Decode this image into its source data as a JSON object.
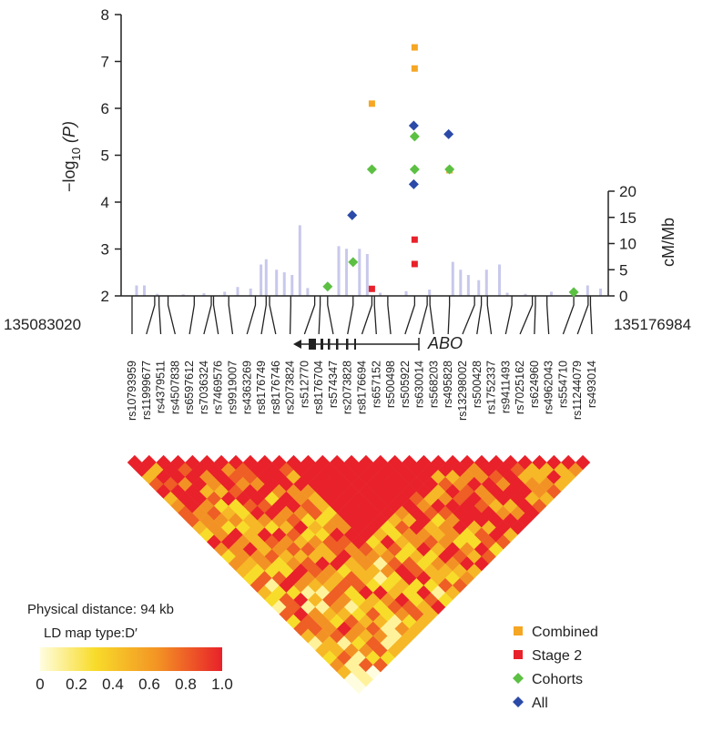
{
  "chart_data": {
    "type": "scatter",
    "y_axis": {
      "label": "−log10 (P)",
      "label_main": "−log",
      "label_sub": "10",
      "label_tail": " (P)",
      "ylim": [
        2,
        8
      ],
      "ticks": [
        "2",
        "3",
        "4",
        "5",
        "6",
        "7",
        "8"
      ]
    },
    "y2_axis": {
      "label": "cM/Mb",
      "ylim": [
        0,
        20
      ],
      "ticks": [
        "0",
        "5",
        "10",
        "15",
        "20"
      ]
    },
    "x_axis": {
      "start": "135083020",
      "end": "135176984",
      "xlim": [
        135083020,
        135176984
      ]
    },
    "gene": {
      "name": "ABO"
    },
    "series": [
      {
        "name": "Combined",
        "color": "#f5a623",
        "marker": "square",
        "points": [
          {
            "snp": "rs8176694",
            "y": 6.1
          },
          {
            "snp": "rs505922",
            "y": 7.3
          },
          {
            "snp": "rs505922",
            "y": 6.85
          },
          {
            "snp": "rs495828",
            "y": 4.68
          }
        ]
      },
      {
        "name": "Stage 2",
        "color": "#e8212a",
        "marker": "square",
        "points": [
          {
            "snp": "rs8176694",
            "y": 2.15
          },
          {
            "snp": "rs505922",
            "y": 3.2
          },
          {
            "snp": "rs505922",
            "y": 2.68
          }
        ]
      },
      {
        "name": "Cohorts",
        "color": "#5cc043",
        "marker": "diamond",
        "points": [
          {
            "snp": "rs574347",
            "y": 2.2
          },
          {
            "snp": "rs2073828",
            "y": 2.72
          },
          {
            "snp": "rs8176694",
            "y": 4.7
          },
          {
            "snp": "rs505922",
            "y": 5.4
          },
          {
            "snp": "rs505922",
            "y": 4.7
          },
          {
            "snp": "rs495828",
            "y": 4.7
          },
          {
            "snp": "rs554710",
            "y": 2.08
          }
        ]
      },
      {
        "name": "All",
        "color": "#2b4aa8",
        "marker": "diamond",
        "points": [
          {
            "snp": "rs2073828",
            "y": 3.72
          },
          {
            "snp": "rs505922",
            "y": 5.63
          },
          {
            "snp": "rs505922",
            "y": 4.38
          },
          {
            "snp": "rs495828",
            "y": 5.45
          }
        ]
      }
    ],
    "recombination_rate_cM_per_Mb": [
      [
        135086000,
        2
      ],
      [
        135087500,
        2
      ],
      [
        135090000,
        0.4
      ],
      [
        135095000,
        0.3
      ],
      [
        135099000,
        0.5
      ],
      [
        135103000,
        0.8
      ],
      [
        135105500,
        1.7
      ],
      [
        135108000,
        1.4
      ],
      [
        135110000,
        6
      ],
      [
        135111000,
        7
      ],
      [
        135113000,
        5
      ],
      [
        135114500,
        4.5
      ],
      [
        135116000,
        4
      ],
      [
        135117500,
        13.5
      ],
      [
        135119000,
        1.5
      ],
      [
        135125000,
        9.5
      ],
      [
        135126500,
        9
      ],
      [
        135129000,
        9
      ],
      [
        135130500,
        8
      ],
      [
        135133000,
        0.6
      ],
      [
        135138000,
        0.9
      ],
      [
        135142500,
        1.2
      ],
      [
        135147000,
        6.5
      ],
      [
        135148500,
        5
      ],
      [
        135150000,
        4
      ],
      [
        135152000,
        3
      ],
      [
        135153500,
        5
      ],
      [
        135156000,
        6
      ],
      [
        135157500,
        0.6
      ],
      [
        135161000,
        0.4
      ],
      [
        135166000,
        0.8
      ],
      [
        135170500,
        1
      ],
      [
        135173000,
        2
      ],
      [
        135175500,
        1.4
      ]
    ],
    "snps": [
      "rs10793959",
      "rs11999677",
      "rs4379511",
      "rs4507838",
      "rs6597612",
      "rs7036324",
      "rs7469576",
      "rs9919007",
      "rs4363269",
      "rs8176749",
      "rs8176746",
      "rs2073824",
      "rs512770",
      "rs8176704",
      "rs574347",
      "rs2073828",
      "rs8176694",
      "rs657152",
      "rs500498",
      "rs505922",
      "rs630014",
      "rs568203",
      "rs495828",
      "rs13298002",
      "rs500428",
      "rs1752337",
      "rs9411493",
      "rs7025162",
      "rs624960",
      "rs4962043",
      "rs554710",
      "rs11244079",
      "rs493014"
    ],
    "ld_map": {
      "physical_distance": "Physical distance: 94 kb",
      "map_type": "LD map type:D′",
      "scale_ticks": [
        "0",
        "0.2",
        "0.4",
        "0.6",
        "0.8",
        "1.0"
      ],
      "color_low": "#fffde0",
      "color_high": "#e8212a"
    },
    "legend": {
      "position": "bottom-right",
      "items": [
        {
          "label": "Combined",
          "color": "#f5a623",
          "marker": "square"
        },
        {
          "label": "Stage 2",
          "color": "#e8212a",
          "marker": "square"
        },
        {
          "label": "Cohorts",
          "color": "#5cc043",
          "marker": "diamond"
        },
        {
          "label": "All",
          "color": "#2b4aa8",
          "marker": "diamond"
        }
      ]
    },
    "recomb_color": "#c8c8ec"
  }
}
